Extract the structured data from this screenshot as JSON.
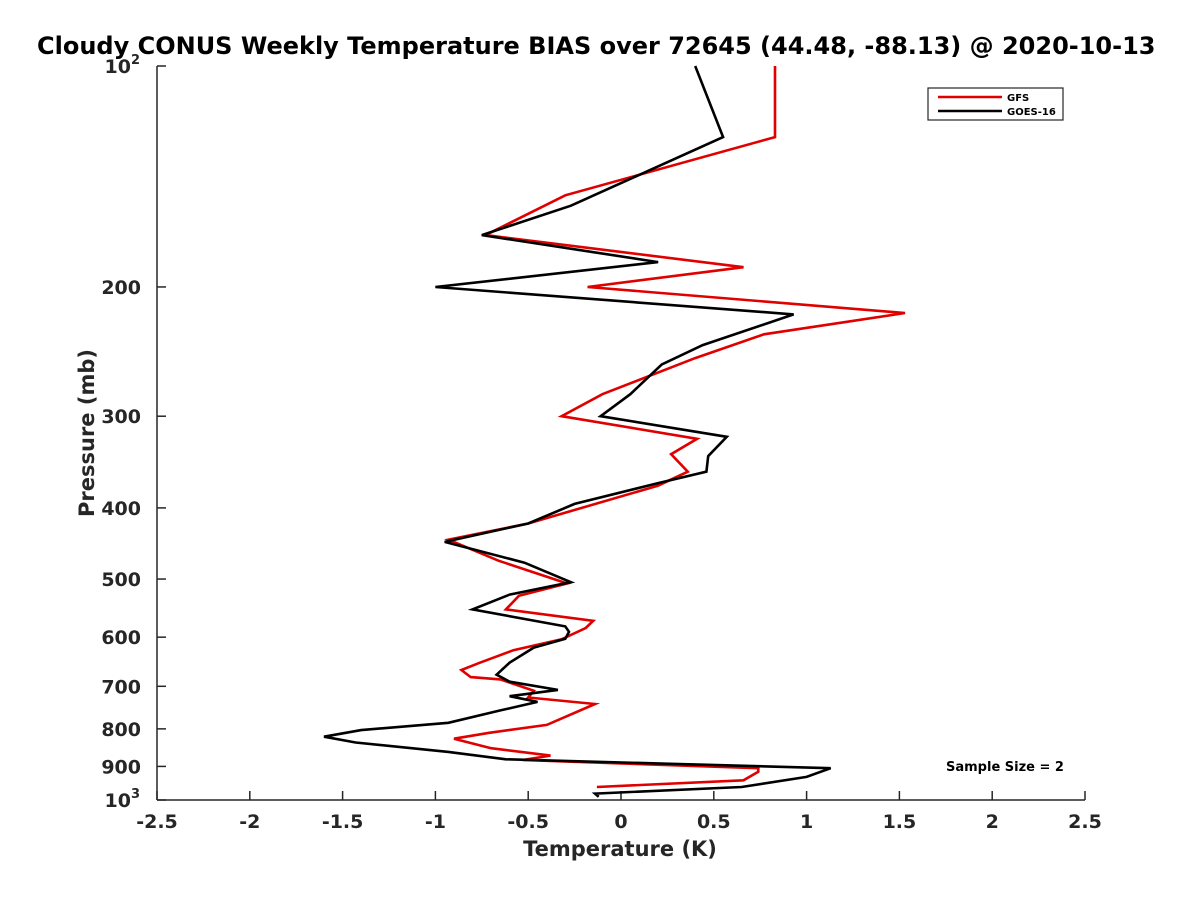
{
  "chart_data": {
    "type": "line",
    "title": "Cloudy CONUS Weekly Temperature BIAS over 72645 (44.48, -88.13) @ 2020-10-13",
    "xlabel": "Temperature (K)",
    "ylabel": "Pressure (mb)",
    "xlim": [
      -2.5,
      2.5
    ],
    "ylim": [
      100,
      1000
    ],
    "y_scale": "log",
    "y_reversed": true,
    "x_ticks": [
      "-2.5",
      "-2",
      "-1.5",
      "-1",
      "-0.5",
      "0",
      "0.5",
      "1",
      "1.5",
      "2",
      "2.5"
    ],
    "y_ticks": [
      {
        "value": 100,
        "label": "10",
        "sup": "2"
      },
      {
        "value": 200,
        "label": "200"
      },
      {
        "value": 300,
        "label": "300"
      },
      {
        "value": 400,
        "label": "400"
      },
      {
        "value": 500,
        "label": "500"
      },
      {
        "value": 600,
        "label": "600"
      },
      {
        "value": 700,
        "label": "700"
      },
      {
        "value": 800,
        "label": "800"
      },
      {
        "value": 900,
        "label": "900"
      },
      {
        "value": 1000,
        "label": "10",
        "sup": "3"
      }
    ],
    "grid": false,
    "legend_position": "top-right",
    "annotation": "Sample Size = 2",
    "series": [
      {
        "name": "GFS",
        "color": "#e00000",
        "points": [
          [
            0.83,
            100
          ],
          [
            0.83,
            125
          ],
          [
            -0.3,
            150
          ],
          [
            -0.73,
            170
          ],
          [
            0.66,
            188
          ],
          [
            -0.18,
            200
          ],
          [
            1.53,
            217
          ],
          [
            0.77,
            232
          ],
          [
            0.4,
            250
          ],
          [
            -0.1,
            280
          ],
          [
            -0.32,
            300
          ],
          [
            0.41,
            322
          ],
          [
            0.27,
            338
          ],
          [
            0.36,
            357
          ],
          [
            0.2,
            373
          ],
          [
            -0.5,
            420
          ],
          [
            -0.93,
            442
          ],
          [
            -0.66,
            472
          ],
          [
            -0.29,
            507
          ],
          [
            -0.55,
            527
          ],
          [
            -0.62,
            550
          ],
          [
            -0.15,
            570
          ],
          [
            -0.19,
            583
          ],
          [
            -0.32,
            604
          ],
          [
            -0.58,
            625
          ],
          [
            -0.76,
            650
          ],
          [
            -0.86,
            665
          ],
          [
            -0.81,
            680
          ],
          [
            -0.65,
            685
          ],
          [
            -0.47,
            710
          ],
          [
            -0.5,
            725
          ],
          [
            -0.14,
            740
          ],
          [
            -0.4,
            790
          ],
          [
            -0.71,
            810
          ],
          [
            -0.9,
            825
          ],
          [
            -0.7,
            850
          ],
          [
            -0.38,
            870
          ],
          [
            -0.53,
            882
          ],
          [
            0.74,
            905
          ],
          [
            0.74,
            915
          ],
          [
            0.66,
            940
          ],
          [
            -0.13,
            960
          ]
        ]
      },
      {
        "name": "GOES-16",
        "color": "#000000",
        "points": [
          [
            0.4,
            100
          ],
          [
            0.55,
            125
          ],
          [
            -0.27,
            155
          ],
          [
            -0.75,
            170
          ],
          [
            0.2,
            185
          ],
          [
            -1.0,
            200
          ],
          [
            0.93,
            218
          ],
          [
            0.44,
            240
          ],
          [
            0.22,
            255
          ],
          [
            0.05,
            280
          ],
          [
            -0.11,
            300
          ],
          [
            0.57,
            320
          ],
          [
            0.47,
            340
          ],
          [
            0.46,
            357
          ],
          [
            0.2,
            370
          ],
          [
            -0.25,
            395
          ],
          [
            -0.5,
            420
          ],
          [
            -0.95,
            445
          ],
          [
            -0.52,
            475
          ],
          [
            -0.27,
            505
          ],
          [
            -0.6,
            525
          ],
          [
            -0.8,
            550
          ],
          [
            -0.3,
            580
          ],
          [
            -0.28,
            590
          ],
          [
            -0.3,
            603
          ],
          [
            -0.47,
            620
          ],
          [
            -0.6,
            650
          ],
          [
            -0.67,
            675
          ],
          [
            -0.6,
            690
          ],
          [
            -0.34,
            708
          ],
          [
            -0.6,
            722
          ],
          [
            -0.45,
            735
          ],
          [
            -0.65,
            755
          ],
          [
            -0.93,
            785
          ],
          [
            -1.4,
            803
          ],
          [
            -1.6,
            820
          ],
          [
            -1.43,
            835
          ],
          [
            -0.93,
            860
          ],
          [
            -0.62,
            880
          ],
          [
            1.13,
            905
          ],
          [
            1.0,
            930
          ],
          [
            0.65,
            960
          ],
          [
            -0.14,
            980
          ],
          [
            -0.12,
            990
          ]
        ]
      }
    ]
  }
}
